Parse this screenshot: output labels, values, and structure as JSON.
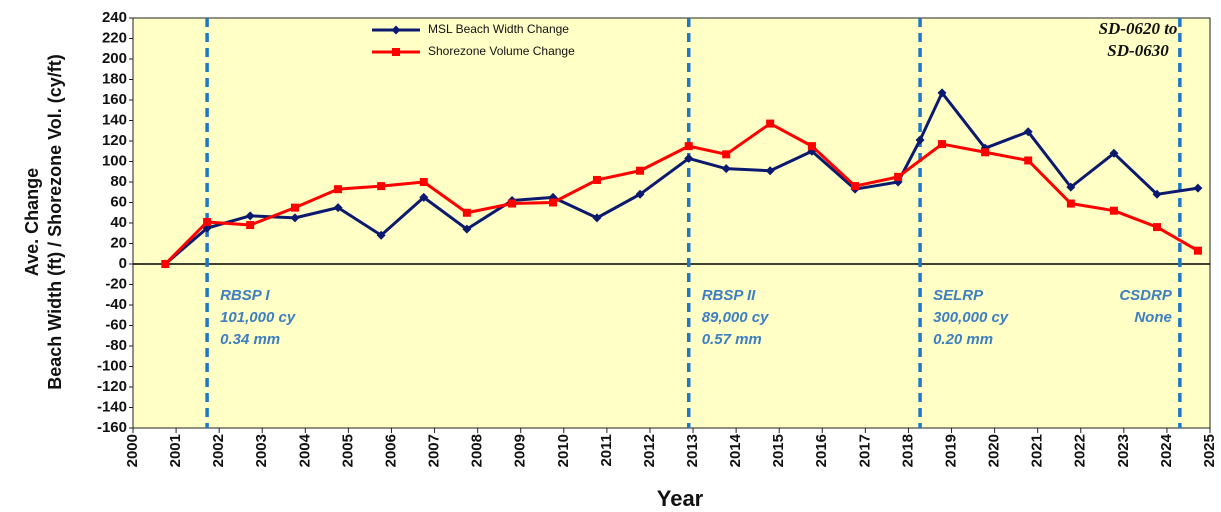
{
  "chart_data": {
    "type": "line",
    "y_label_lines": [
      "Ave. Change",
      "Beach Width (ft) / Shorezone Vol. (cy/ft)"
    ],
    "x_label": "Year",
    "corner_label_lines": [
      "SD-0620 to",
      "SD-0630"
    ],
    "xlim": [
      2000,
      2025
    ],
    "xticks": [
      2000,
      2001,
      2002,
      2003,
      2004,
      2005,
      2006,
      2007,
      2008,
      2009,
      2010,
      2011,
      2012,
      2013,
      2014,
      2015,
      2016,
      2017,
      2018,
      2019,
      2020,
      2021,
      2022,
      2023,
      2024,
      2025
    ],
    "ylim": [
      -160,
      240
    ],
    "yticks": [
      -160,
      -140,
      -120,
      -100,
      -80,
      -60,
      -40,
      -20,
      0,
      20,
      40,
      60,
      80,
      100,
      120,
      140,
      160,
      180,
      200,
      220,
      240
    ],
    "grid": false,
    "series": [
      {
        "name": "MSL Beach Width Change",
        "color": "#0b1a6e",
        "marker": "diamond",
        "x": [
          2000.75,
          2001.72,
          2002.72,
          2003.76,
          2004.76,
          2005.76,
          2006.75,
          2007.75,
          2008.8,
          2009.75,
          2010.77,
          2011.77,
          2012.9,
          2013.77,
          2014.79,
          2015.76,
          2016.76,
          2017.76,
          2018.27,
          2018.78,
          2019.78,
          2020.78,
          2021.77,
          2022.77,
          2023.77,
          2024.72
        ],
        "values": [
          0,
          35,
          47,
          45,
          55,
          28,
          65,
          34,
          62,
          65,
          45,
          68,
          103,
          93,
          91,
          110,
          73,
          80,
          121,
          167,
          113,
          129,
          75,
          108,
          68,
          74
        ]
      },
      {
        "name": "Shorezone Volume Change",
        "color": "#ff0000",
        "marker": "square",
        "x": [
          2000.75,
          2001.72,
          2002.72,
          2003.76,
          2004.76,
          2005.76,
          2006.75,
          2007.75,
          2008.8,
          2009.75,
          2010.77,
          2011.77,
          2012.9,
          2013.77,
          2014.79,
          2015.76,
          2016.76,
          2017.76,
          2018.78,
          2019.78,
          2020.78,
          2021.77,
          2022.77,
          2023.77,
          2024.72
        ],
        "values": [
          0,
          41,
          38,
          55,
          73,
          76,
          80,
          50,
          59,
          60,
          82,
          91,
          115,
          107,
          137,
          115,
          76,
          85,
          117,
          109,
          101,
          59,
          52,
          36,
          13
        ]
      }
    ],
    "events": [
      {
        "x": 2001.72,
        "lines": [
          "RBSP I",
          "101,000 cy",
          "0.34 mm"
        ],
        "align": "left"
      },
      {
        "x": 2012.9,
        "lines": [
          "RBSP II",
          "89,000 cy",
          "0.57 mm"
        ],
        "align": "left"
      },
      {
        "x": 2018.27,
        "lines": [
          "SELRP",
          "300,000 cy",
          "0.20 mm"
        ],
        "align": "left"
      },
      {
        "x": 2024.3,
        "lines": [
          "CSDRP",
          "None"
        ],
        "align": "right"
      }
    ]
  }
}
